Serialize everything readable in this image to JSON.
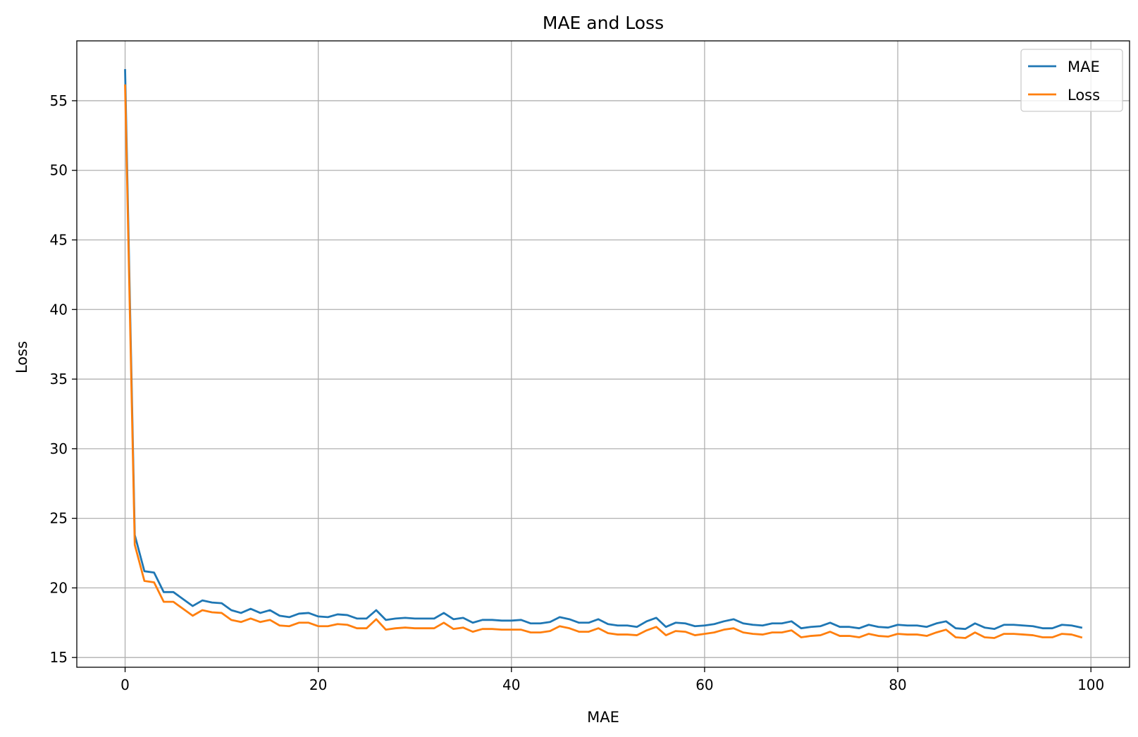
{
  "chart_data": {
    "type": "line",
    "title": "MAE and Loss",
    "xlabel": "MAE",
    "ylabel": "Loss",
    "xlim": [
      -5,
      104
    ],
    "ylim": [
      14.3,
      59.3
    ],
    "x_ticks": [
      0,
      20,
      40,
      60,
      80,
      100
    ],
    "y_ticks": [
      15,
      20,
      25,
      30,
      35,
      40,
      45,
      50,
      55
    ],
    "grid": true,
    "legend_position": "top-right",
    "x": [
      0,
      1,
      2,
      3,
      4,
      5,
      6,
      7,
      8,
      9,
      10,
      11,
      12,
      13,
      14,
      15,
      16,
      17,
      18,
      19,
      20,
      21,
      22,
      23,
      24,
      25,
      26,
      27,
      28,
      29,
      30,
      31,
      32,
      33,
      34,
      35,
      36,
      37,
      38,
      39,
      40,
      41,
      42,
      43,
      44,
      45,
      46,
      47,
      48,
      49,
      50,
      51,
      52,
      53,
      54,
      55,
      56,
      57,
      58,
      59,
      60,
      61,
      62,
      63,
      64,
      65,
      66,
      67,
      68,
      69,
      70,
      71,
      72,
      73,
      74,
      75,
      76,
      77,
      78,
      79,
      80,
      81,
      82,
      83,
      84,
      85,
      86,
      87,
      88,
      89,
      90,
      91,
      92,
      93,
      94,
      95,
      96,
      97,
      98,
      99
    ],
    "series": [
      {
        "name": "MAE",
        "color": "#1f77b4",
        "values": [
          57.2,
          23.8,
          21.2,
          21.1,
          19.7,
          19.7,
          19.2,
          18.7,
          19.1,
          18.95,
          18.9,
          18.4,
          18.2,
          18.5,
          18.2,
          18.4,
          18.0,
          17.9,
          18.15,
          18.2,
          17.95,
          17.9,
          18.1,
          18.05,
          17.8,
          17.8,
          18.4,
          17.7,
          17.8,
          17.85,
          17.8,
          17.8,
          17.8,
          18.2,
          17.75,
          17.85,
          17.5,
          17.7,
          17.7,
          17.65,
          17.65,
          17.7,
          17.45,
          17.45,
          17.55,
          17.9,
          17.75,
          17.5,
          17.5,
          17.75,
          17.4,
          17.3,
          17.3,
          17.2,
          17.6,
          17.85,
          17.2,
          17.5,
          17.45,
          17.25,
          17.3,
          17.4,
          17.6,
          17.75,
          17.45,
          17.35,
          17.3,
          17.45,
          17.45,
          17.6,
          17.1,
          17.2,
          17.25,
          17.5,
          17.2,
          17.2,
          17.1,
          17.35,
          17.2,
          17.15,
          17.35,
          17.3,
          17.3,
          17.2,
          17.45,
          17.6,
          17.1,
          17.05,
          17.45,
          17.15,
          17.05,
          17.35,
          17.35,
          17.3,
          17.25,
          17.1,
          17.1,
          17.35,
          17.3,
          17.15
        ]
      },
      {
        "name": "Loss",
        "color": "#ff7f0e",
        "values": [
          56.1,
          23.1,
          20.5,
          20.4,
          19.0,
          19.0,
          18.5,
          18.0,
          18.4,
          18.25,
          18.2,
          17.7,
          17.55,
          17.8,
          17.55,
          17.7,
          17.3,
          17.25,
          17.5,
          17.5,
          17.25,
          17.25,
          17.4,
          17.35,
          17.1,
          17.1,
          17.75,
          17.0,
          17.1,
          17.15,
          17.1,
          17.1,
          17.1,
          17.5,
          17.05,
          17.15,
          16.85,
          17.05,
          17.05,
          17.0,
          17.0,
          17.0,
          16.8,
          16.8,
          16.9,
          17.25,
          17.1,
          16.85,
          16.85,
          17.1,
          16.75,
          16.65,
          16.65,
          16.6,
          16.95,
          17.2,
          16.6,
          16.9,
          16.85,
          16.6,
          16.7,
          16.8,
          17.0,
          17.1,
          16.8,
          16.7,
          16.65,
          16.8,
          16.8,
          16.95,
          16.45,
          16.55,
          16.6,
          16.85,
          16.55,
          16.55,
          16.45,
          16.7,
          16.55,
          16.5,
          16.7,
          16.65,
          16.65,
          16.55,
          16.8,
          17.0,
          16.45,
          16.4,
          16.8,
          16.45,
          16.4,
          16.7,
          16.7,
          16.65,
          16.6,
          16.45,
          16.45,
          16.7,
          16.65,
          16.45
        ]
      }
    ]
  }
}
